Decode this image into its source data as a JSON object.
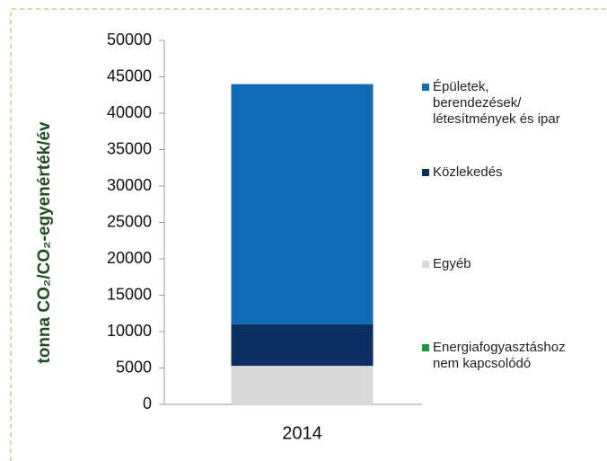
{
  "chart_data": {
    "type": "stacked_bar",
    "y_label": "tonna CO₂/CO₂-egyenérték/év",
    "categories": [
      "2014"
    ],
    "series": [
      {
        "name": "Épületek,\nberendezések/\nlétesítmények és ipar",
        "color": "#0e6ab4",
        "values": [
          33000
        ]
      },
      {
        "name": "Közlekedés",
        "color": "#0b2e63",
        "values": [
          5700
        ]
      },
      {
        "name": "Egyéb",
        "color": "#d9d9d9",
        "values": [
          5300
        ]
      },
      {
        "name": "Energiafogyasztáshoz\nnem kapcsolódó",
        "color": "#1a9641",
        "values": [
          0
        ]
      }
    ],
    "ylim": [
      0,
      50000
    ],
    "yticks": [
      0,
      5000,
      10000,
      15000,
      20000,
      25000,
      30000,
      35000,
      40000,
      45000,
      50000
    ],
    "legend": "right"
  }
}
